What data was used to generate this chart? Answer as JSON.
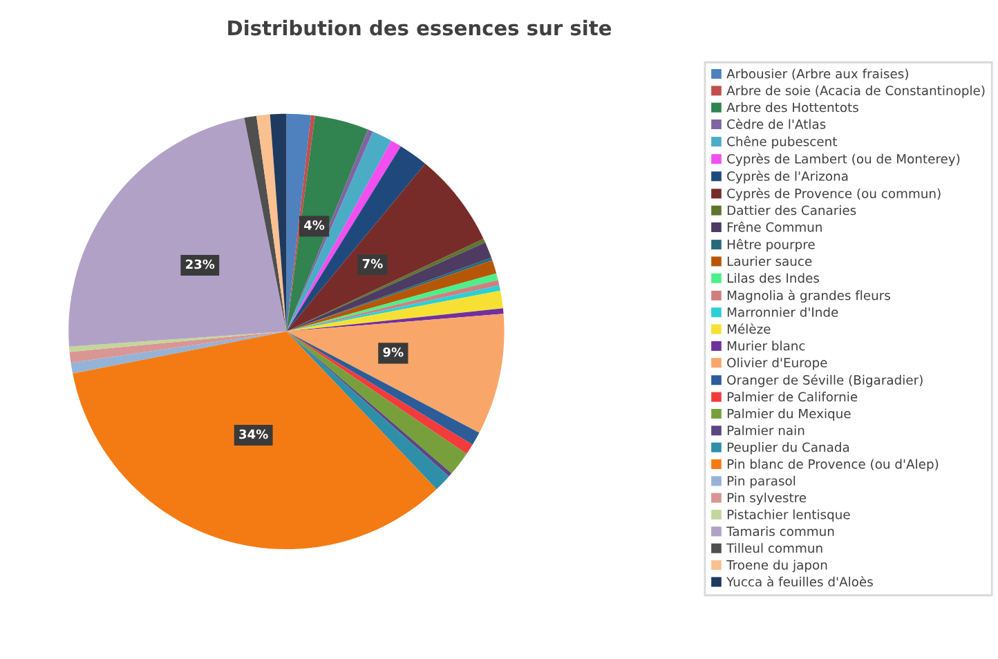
{
  "chart_data": {
    "type": "pie",
    "title": "Distribution des essences sur site",
    "categories": [
      "Arbousier (Arbre aux fraises)",
      "Arbre de soie (Acacia de Constantinople)",
      "Arbre des Hottentots",
      "Cèdre de l'Atlas",
      "Chêne pubescent",
      "Cyprès de Lambert (ou de Monterey)",
      "Cyprès de l'Arizona",
      "Cyprès de Provence (ou commun)",
      "Dattier des Canaries",
      "Frêne Commun",
      "Hêtre pourpre",
      "Laurier sauce",
      "Lilas des Indes",
      "Magnolia à grandes fleurs",
      "Marronnier d'Inde",
      "Mélèze",
      "Murier blanc",
      "Olivier d'Europe",
      "Oranger de Séville (Bigaradier)",
      "Palmier de Californie",
      "Palmier du Mexique",
      "Palmier nain",
      "Peuplier du Canada",
      "Pin blanc de Provence (ou d'Alep)",
      "Pin parasol",
      "Pin sylvestre",
      "Pistachier lentisque",
      "Tamaris commun",
      "Tilleul commun",
      "Troene du japon",
      "Yucca à feuilles d'Aloès"
    ],
    "values": [
      1.8,
      0.3,
      4,
      0.4,
      1.5,
      0.8,
      2.2,
      7,
      0.3,
      1.2,
      0.2,
      1.0,
      0.5,
      0.4,
      0.4,
      1.3,
      0.4,
      9,
      1.0,
      0.8,
      1.8,
      0.3,
      1.3,
      34,
      0.8,
      0.8,
      0.4,
      23,
      0.9,
      1.0,
      1.2
    ],
    "value_labels": [
      null,
      null,
      "4%",
      null,
      null,
      null,
      null,
      "7%",
      null,
      null,
      null,
      null,
      null,
      null,
      null,
      null,
      null,
      "9%",
      null,
      null,
      null,
      null,
      null,
      "34%",
      null,
      null,
      null,
      "23%",
      null,
      null,
      null
    ],
    "colors": [
      "#4e81bd",
      "#c0504d",
      "#31834f",
      "#8064a2",
      "#4bacc6",
      "#f24ef0",
      "#1f497d",
      "#772c2a",
      "#5f7530",
      "#4d3b62",
      "#276a7c",
      "#b65708",
      "#4bf08a",
      "#d07f7f",
      "#2dcfd6",
      "#f6e033",
      "#7030a0",
      "#f9a66a",
      "#2c5d98",
      "#f33b3b",
      "#77a03c",
      "#5c4683",
      "#2f8fa8",
      "#f47b13",
      "#95b3d7",
      "#d99694",
      "#c3d69b",
      "#b2a1c7",
      "#4f4f4f",
      "#fac090",
      "#1f3a5f"
    ],
    "legend": "right"
  }
}
